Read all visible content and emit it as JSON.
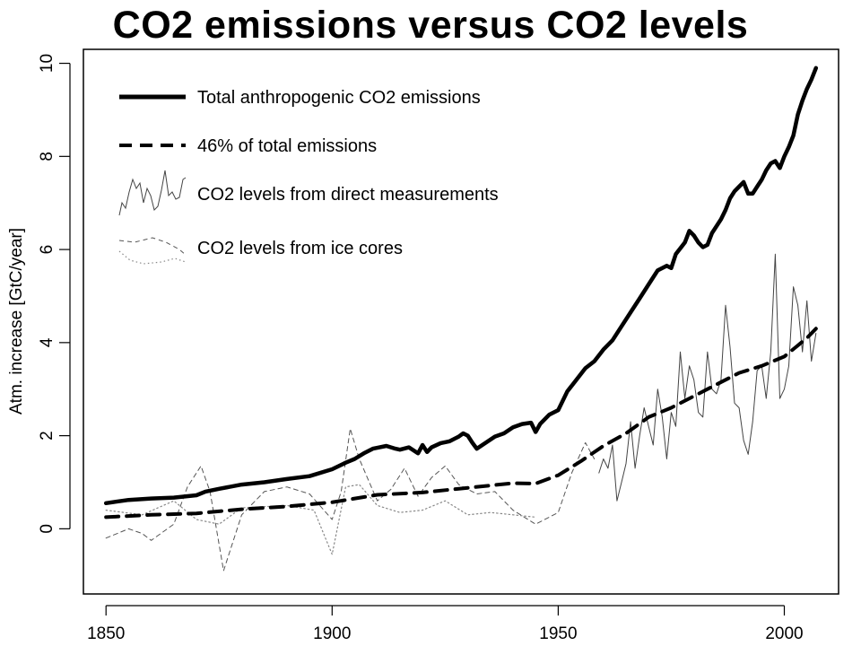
{
  "chart_data": {
    "type": "line",
    "title": "CO2 emissions versus CO2 levels",
    "xlabel": "",
    "ylabel": "Atm. increase [GtC/year]",
    "xlim": [
      1845,
      2012
    ],
    "ylim": [
      -1.4,
      10.3
    ],
    "x_ticks": [
      1850,
      1900,
      1950,
      2000
    ],
    "y_ticks": [
      0,
      2,
      4,
      6,
      8,
      10
    ],
    "grid": false,
    "legend_position": "top-left",
    "series": [
      {
        "name": "Total anthropogenic CO2 emissions",
        "style": "solid-thick",
        "color": "#000000",
        "points": [
          [
            1850,
            0.55
          ],
          [
            1852,
            0.58
          ],
          [
            1855,
            0.62
          ],
          [
            1860,
            0.65
          ],
          [
            1865,
            0.67
          ],
          [
            1870,
            0.72
          ],
          [
            1872,
            0.8
          ],
          [
            1875,
            0.86
          ],
          [
            1880,
            0.95
          ],
          [
            1885,
            1.0
          ],
          [
            1890,
            1.07
          ],
          [
            1895,
            1.13
          ],
          [
            1900,
            1.28
          ],
          [
            1903,
            1.42
          ],
          [
            1905,
            1.5
          ],
          [
            1907,
            1.62
          ],
          [
            1909,
            1.72
          ],
          [
            1910,
            1.74
          ],
          [
            1912,
            1.78
          ],
          [
            1914,
            1.72
          ],
          [
            1915,
            1.7
          ],
          [
            1917,
            1.75
          ],
          [
            1919,
            1.62
          ],
          [
            1920,
            1.8
          ],
          [
            1921,
            1.65
          ],
          [
            1922,
            1.75
          ],
          [
            1924,
            1.84
          ],
          [
            1926,
            1.88
          ],
          [
            1928,
            1.98
          ],
          [
            1929,
            2.05
          ],
          [
            1930,
            2.0
          ],
          [
            1931,
            1.85
          ],
          [
            1932,
            1.72
          ],
          [
            1934,
            1.85
          ],
          [
            1936,
            1.98
          ],
          [
            1938,
            2.05
          ],
          [
            1940,
            2.18
          ],
          [
            1942,
            2.25
          ],
          [
            1944,
            2.28
          ],
          [
            1945,
            2.08
          ],
          [
            1946,
            2.25
          ],
          [
            1948,
            2.45
          ],
          [
            1950,
            2.55
          ],
          [
            1952,
            2.95
          ],
          [
            1954,
            3.2
          ],
          [
            1956,
            3.45
          ],
          [
            1958,
            3.6
          ],
          [
            1960,
            3.85
          ],
          [
            1962,
            4.05
          ],
          [
            1964,
            4.35
          ],
          [
            1966,
            4.65
          ],
          [
            1968,
            4.95
          ],
          [
            1970,
            5.25
          ],
          [
            1972,
            5.55
          ],
          [
            1974,
            5.65
          ],
          [
            1975,
            5.6
          ],
          [
            1976,
            5.9
          ],
          [
            1978,
            6.15
          ],
          [
            1979,
            6.4
          ],
          [
            1980,
            6.3
          ],
          [
            1981,
            6.15
          ],
          [
            1982,
            6.05
          ],
          [
            1983,
            6.1
          ],
          [
            1984,
            6.35
          ],
          [
            1986,
            6.65
          ],
          [
            1987,
            6.85
          ],
          [
            1988,
            7.1
          ],
          [
            1989,
            7.25
          ],
          [
            1990,
            7.35
          ],
          [
            1991,
            7.45
          ],
          [
            1992,
            7.2
          ],
          [
            1993,
            7.2
          ],
          [
            1994,
            7.35
          ],
          [
            1995,
            7.5
          ],
          [
            1996,
            7.7
          ],
          [
            1997,
            7.85
          ],
          [
            1998,
            7.9
          ],
          [
            1999,
            7.75
          ],
          [
            2000,
            8.0
          ],
          [
            2001,
            8.2
          ],
          [
            2002,
            8.45
          ],
          [
            2003,
            8.9
          ],
          [
            2004,
            9.2
          ],
          [
            2005,
            9.45
          ],
          [
            2006,
            9.65
          ],
          [
            2007,
            9.9
          ]
        ]
      },
      {
        "name": "46% of total emissions",
        "style": "dashed-thick",
        "color": "#000000",
        "points": [
          [
            1850,
            0.25
          ],
          [
            1860,
            0.3
          ],
          [
            1870,
            0.33
          ],
          [
            1880,
            0.42
          ],
          [
            1890,
            0.48
          ],
          [
            1900,
            0.57
          ],
          [
            1910,
            0.73
          ],
          [
            1920,
            0.78
          ],
          [
            1930,
            0.88
          ],
          [
            1940,
            0.98
          ],
          [
            1945,
            0.97
          ],
          [
            1950,
            1.15
          ],
          [
            1955,
            1.45
          ],
          [
            1960,
            1.78
          ],
          [
            1965,
            2.05
          ],
          [
            1970,
            2.4
          ],
          [
            1975,
            2.6
          ],
          [
            1980,
            2.85
          ],
          [
            1985,
            3.1
          ],
          [
            1990,
            3.35
          ],
          [
            1995,
            3.5
          ],
          [
            2000,
            3.7
          ],
          [
            2005,
            4.1
          ],
          [
            2007,
            4.3
          ]
        ]
      },
      {
        "name": "CO2 levels from direct measurements",
        "style": "thin-solid",
        "color": "#444444",
        "points": [
          [
            1959,
            1.2
          ],
          [
            1960,
            1.5
          ],
          [
            1961,
            1.3
          ],
          [
            1962,
            1.8
          ],
          [
            1963,
            0.6
          ],
          [
            1964,
            1.0
          ],
          [
            1965,
            1.4
          ],
          [
            1966,
            2.3
          ],
          [
            1967,
            1.3
          ],
          [
            1968,
            2.0
          ],
          [
            1969,
            2.6
          ],
          [
            1970,
            2.2
          ],
          [
            1971,
            1.8
          ],
          [
            1972,
            3.0
          ],
          [
            1973,
            2.4
          ],
          [
            1974,
            1.5
          ],
          [
            1975,
            2.5
          ],
          [
            1976,
            2.2
          ],
          [
            1977,
            3.8
          ],
          [
            1978,
            2.8
          ],
          [
            1979,
            3.5
          ],
          [
            1980,
            3.2
          ],
          [
            1981,
            2.5
          ],
          [
            1982,
            2.4
          ],
          [
            1983,
            3.8
          ],
          [
            1984,
            3.0
          ],
          [
            1985,
            2.9
          ],
          [
            1986,
            3.2
          ],
          [
            1987,
            4.8
          ],
          [
            1988,
            3.9
          ],
          [
            1989,
            2.7
          ],
          [
            1990,
            2.6
          ],
          [
            1991,
            1.9
          ],
          [
            1992,
            1.6
          ],
          [
            1993,
            2.3
          ],
          [
            1994,
            3.4
          ],
          [
            1995,
            3.5
          ],
          [
            1996,
            2.8
          ],
          [
            1997,
            3.8
          ],
          [
            1998,
            5.9
          ],
          [
            1999,
            2.8
          ],
          [
            2000,
            3.0
          ],
          [
            2001,
            3.5
          ],
          [
            2002,
            5.2
          ],
          [
            2003,
            4.8
          ],
          [
            2004,
            3.8
          ],
          [
            2005,
            4.9
          ],
          [
            2006,
            3.6
          ],
          [
            2007,
            4.2
          ]
        ]
      },
      {
        "name": "CO2 levels from ice cores",
        "style": "dashed-thin",
        "color": "#555555",
        "points": [
          [
            1850,
            -0.2
          ],
          [
            1855,
            0.0
          ],
          [
            1858,
            -0.1
          ],
          [
            1860,
            -0.25
          ],
          [
            1865,
            0.1
          ],
          [
            1868,
            0.9
          ],
          [
            1871,
            1.35
          ],
          [
            1873,
            0.8
          ],
          [
            1876,
            -0.9
          ],
          [
            1880,
            0.3
          ],
          [
            1885,
            0.8
          ],
          [
            1890,
            0.9
          ],
          [
            1895,
            0.75
          ],
          [
            1900,
            0.2
          ],
          [
            1902,
            0.8
          ],
          [
            1904,
            2.15
          ],
          [
            1906,
            1.5
          ],
          [
            1910,
            0.6
          ],
          [
            1913,
            0.85
          ],
          [
            1916,
            1.3
          ],
          [
            1919,
            0.7
          ],
          [
            1922,
            1.1
          ],
          [
            1925,
            1.35
          ],
          [
            1928,
            0.95
          ],
          [
            1932,
            0.75
          ],
          [
            1936,
            0.8
          ],
          [
            1940,
            0.4
          ],
          [
            1945,
            0.1
          ],
          [
            1950,
            0.35
          ],
          [
            1953,
            1.2
          ],
          [
            1956,
            1.85
          ],
          [
            1958,
            1.5
          ]
        ]
      },
      {
        "name": "",
        "style": "dotted",
        "color": "#888888",
        "points": [
          [
            1850,
            0.4
          ],
          [
            1858,
            0.3
          ],
          [
            1865,
            0.6
          ],
          [
            1870,
            0.2
          ],
          [
            1875,
            0.1
          ],
          [
            1880,
            0.45
          ],
          [
            1890,
            0.5
          ],
          [
            1896,
            0.4
          ],
          [
            1900,
            -0.55
          ],
          [
            1903,
            0.9
          ],
          [
            1906,
            0.95
          ],
          [
            1910,
            0.5
          ],
          [
            1915,
            0.35
          ],
          [
            1920,
            0.4
          ],
          [
            1925,
            0.6
          ],
          [
            1930,
            0.3
          ],
          [
            1935,
            0.35
          ],
          [
            1940,
            0.3
          ],
          [
            1945,
            0.25
          ]
        ]
      }
    ],
    "legend": [
      {
        "label": "Total anthropogenic CO2 emissions"
      },
      {
        "label": "46% of total emissions"
      },
      {
        "label": "CO2 levels from direct measurements"
      },
      {
        "label": "CO2 levels from ice cores"
      }
    ]
  }
}
